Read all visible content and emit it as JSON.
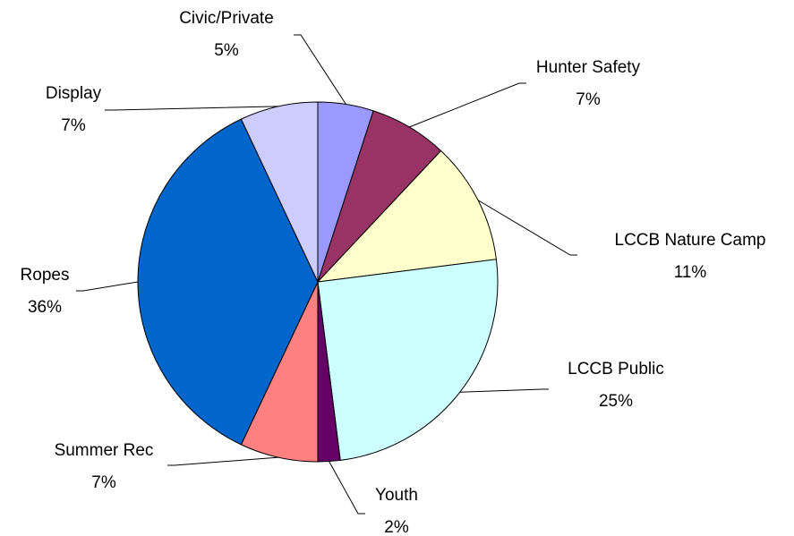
{
  "chart_data": {
    "type": "pie",
    "title": "",
    "legend": "none",
    "slices": [
      {
        "name": "Civic/Private",
        "value": 5,
        "label": "5%",
        "color": "#9999ff"
      },
      {
        "name": "Hunter Safety",
        "value": 7,
        "label": "7%",
        "color": "#993366"
      },
      {
        "name": "LCCB Nature Camp",
        "value": 11,
        "label": "11%",
        "color": "#ffffcc"
      },
      {
        "name": "LCCB Public",
        "value": 25,
        "label": "25%",
        "color": "#ccffff"
      },
      {
        "name": "Youth",
        "value": 2,
        "label": "2%",
        "color": "#660066"
      },
      {
        "name": "Summer Rec",
        "value": 7,
        "label": "7%",
        "color": "#ff8080"
      },
      {
        "name": "Ropes",
        "value": 36,
        "label": "36%",
        "color": "#0066cc"
      },
      {
        "name": "Display",
        "value": 7,
        "label": "7%",
        "color": "#ccccff"
      }
    ]
  }
}
